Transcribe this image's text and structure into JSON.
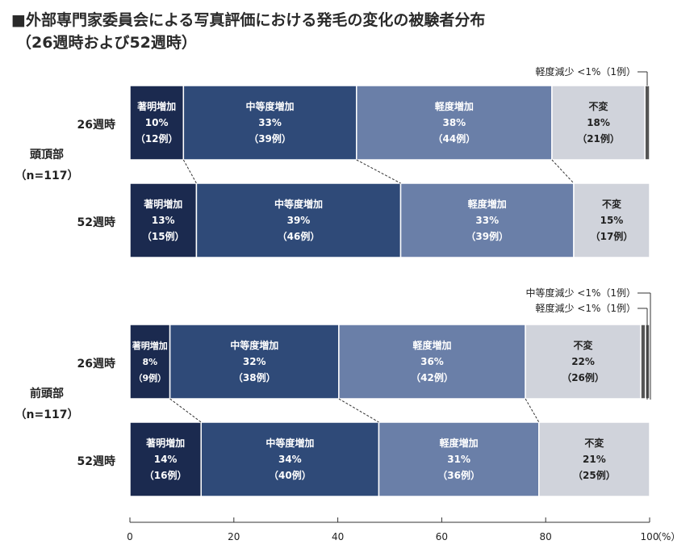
{
  "title_line1": "■外部専門家委員会による写真評価における発毛の変化の被験者分布",
  "title_line2": "（26週時および52週時）",
  "colors": {
    "marked": "#1b2a4f",
    "moderate": "#2f4a78",
    "mild": "#6a7fa8",
    "unchanged": "#d0d3db",
    "decrease": "#555555"
  },
  "groups": [
    {
      "label": "頭頂部",
      "n_label": "（n=117）"
    },
    {
      "label": "前頭部",
      "n_label": "（n=117）"
    }
  ],
  "annotations": [
    {
      "group": 0,
      "text": "軽度減少 <1%（1例）"
    },
    {
      "group": 1,
      "text": "中等度減少 <1%（1例）"
    },
    {
      "group": 1,
      "text": "軽度減少 <1%（1例）"
    }
  ],
  "chart_data": {
    "type": "bar",
    "orientation": "horizontal",
    "stacked": true,
    "xlim": [
      0,
      100
    ],
    "x_ticks": [
      "0",
      "20",
      "40",
      "60",
      "80",
      "100"
    ],
    "x_unit": "（%）",
    "bars": [
      {
        "group": 0,
        "label": "26週時",
        "segments": [
          {
            "name": "著明増加",
            "pct_label": "10%",
            "n_label": "（12例）",
            "value": 10.3,
            "color_key": "marked"
          },
          {
            "name": "中等度増加",
            "pct_label": "33%",
            "n_label": "（39例）",
            "value": 33.3,
            "color_key": "moderate"
          },
          {
            "name": "軽度増加",
            "pct_label": "38%",
            "n_label": "（44例）",
            "value": 37.6,
            "color_key": "mild"
          },
          {
            "name": "不変",
            "pct_label": "18%",
            "n_label": "（21例）",
            "value": 17.9,
            "color_key": "unchanged"
          },
          {
            "name": "軽度減少",
            "pct_label": "",
            "n_label": "",
            "value": 0.9,
            "color_key": "decrease"
          }
        ]
      },
      {
        "group": 0,
        "label": "52週時",
        "segments": [
          {
            "name": "著明増加",
            "pct_label": "13%",
            "n_label": "（15例）",
            "value": 12.8,
            "color_key": "marked"
          },
          {
            "name": "中等度増加",
            "pct_label": "39%",
            "n_label": "（46例）",
            "value": 39.3,
            "color_key": "moderate"
          },
          {
            "name": "軽度増加",
            "pct_label": "33%",
            "n_label": "（39例）",
            "value": 33.3,
            "color_key": "mild"
          },
          {
            "name": "不変",
            "pct_label": "15%",
            "n_label": "（17例）",
            "value": 14.5,
            "color_key": "unchanged"
          }
        ]
      },
      {
        "group": 1,
        "label": "26週時",
        "segments": [
          {
            "name": "著明増加",
            "pct_label": "8%",
            "n_label": "（9例）",
            "value": 7.7,
            "color_key": "marked"
          },
          {
            "name": "中等度増加",
            "pct_label": "32%",
            "n_label": "（38例）",
            "value": 32.5,
            "color_key": "moderate"
          },
          {
            "name": "軽度増加",
            "pct_label": "36%",
            "n_label": "（42例）",
            "value": 35.9,
            "color_key": "mild"
          },
          {
            "name": "不変",
            "pct_label": "22%",
            "n_label": "（26例）",
            "value": 22.2,
            "color_key": "unchanged"
          },
          {
            "name": "中等度減少",
            "pct_label": "",
            "n_label": "",
            "value": 0.9,
            "color_key": "decrease"
          },
          {
            "name": "軽度減少",
            "pct_label": "",
            "n_label": "",
            "value": 0.9,
            "color_key": "decrease"
          }
        ]
      },
      {
        "group": 1,
        "label": "52週時",
        "segments": [
          {
            "name": "著明増加",
            "pct_label": "14%",
            "n_label": "（16例）",
            "value": 13.7,
            "color_key": "marked"
          },
          {
            "name": "中等度増加",
            "pct_label": "34%",
            "n_label": "（40例）",
            "value": 34.2,
            "color_key": "moderate"
          },
          {
            "name": "軽度増加",
            "pct_label": "31%",
            "n_label": "（36例）",
            "value": 30.8,
            "color_key": "mild"
          },
          {
            "name": "不変",
            "pct_label": "21%",
            "n_label": "（25例）",
            "value": 21.4,
            "color_key": "unchanged"
          }
        ]
      }
    ]
  }
}
